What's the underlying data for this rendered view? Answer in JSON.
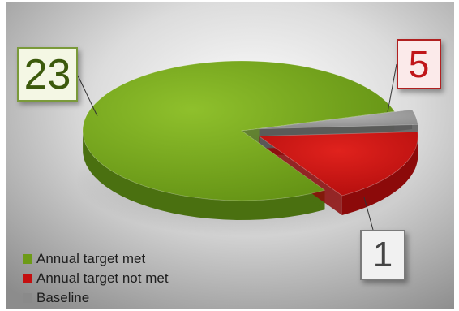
{
  "chart_data": {
    "type": "pie",
    "style": "3d-exploded",
    "categories": [
      "Annual target met",
      "Annual target not met",
      "Baseline"
    ],
    "values": [
      23,
      5,
      1
    ],
    "colors": [
      "#6d9b17",
      "#c40f10",
      "#8a8a8a"
    ],
    "data_labels": [
      "23",
      "5",
      "1"
    ],
    "legend_position": "bottom-left",
    "title": ""
  }
}
